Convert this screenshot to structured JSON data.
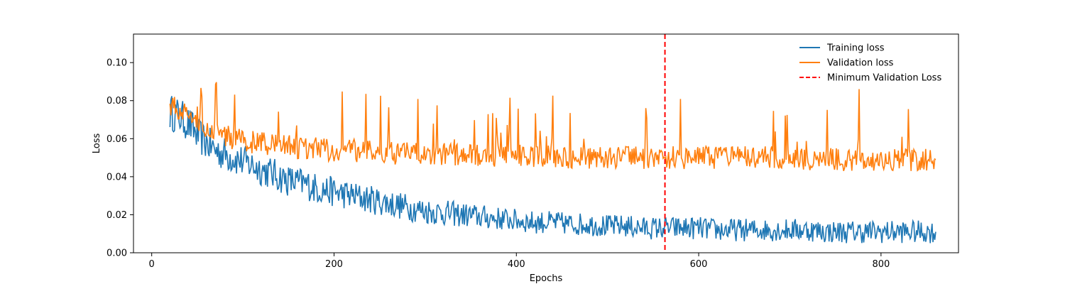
{
  "chart_data": {
    "type": "line",
    "title": "",
    "xlabel": "Epochs",
    "ylabel": "Loss",
    "xlim": [
      -20,
      885
    ],
    "ylim": [
      0.0,
      0.115
    ],
    "xticks": [
      0,
      200,
      400,
      600,
      800
    ],
    "xtick_labels": [
      "0",
      "200",
      "400",
      "600",
      "800"
    ],
    "yticks": [
      0.0,
      0.02,
      0.04,
      0.06,
      0.08,
      0.1
    ],
    "ytick_labels": [
      "0.00",
      "0.02",
      "0.04",
      "0.06",
      "0.08",
      "0.10"
    ],
    "grid": false,
    "legend_position": "top-right",
    "series": [
      {
        "name": "Training loss",
        "color": "#1f77b4",
        "x": [
          20,
          30,
          40,
          50,
          60,
          70,
          80,
          90,
          100,
          110,
          120,
          130,
          140,
          150,
          160,
          170,
          180,
          190,
          200,
          210,
          220,
          230,
          240,
          250,
          260,
          270,
          280,
          290,
          300,
          320,
          340,
          360,
          380,
          400,
          420,
          440,
          460,
          480,
          500,
          520,
          540,
          560,
          580,
          600,
          620,
          640,
          660,
          680,
          700,
          720,
          740,
          760,
          780,
          800,
          820,
          840,
          860
        ],
        "y": [
          0.074,
          0.072,
          0.068,
          0.062,
          0.058,
          0.054,
          0.052,
          0.05,
          0.048,
          0.046,
          0.044,
          0.042,
          0.04,
          0.038,
          0.037,
          0.036,
          0.034,
          0.033,
          0.032,
          0.031,
          0.03,
          0.029,
          0.028,
          0.027,
          0.026,
          0.025,
          0.024,
          0.023,
          0.022,
          0.021,
          0.02,
          0.019,
          0.018,
          0.017,
          0.016,
          0.016,
          0.015,
          0.015,
          0.014,
          0.014,
          0.013,
          0.013,
          0.013,
          0.013,
          0.012,
          0.012,
          0.012,
          0.012,
          0.012,
          0.012,
          0.011,
          0.011,
          0.011,
          0.011,
          0.011,
          0.011,
          0.011
        ]
      },
      {
        "name": "Validation loss",
        "color": "#ff7f0e",
        "x": [
          20,
          30,
          40,
          50,
          60,
          70,
          80,
          90,
          100,
          110,
          120,
          130,
          140,
          150,
          160,
          170,
          180,
          190,
          200,
          210,
          220,
          230,
          240,
          250,
          260,
          270,
          280,
          290,
          300,
          320,
          340,
          360,
          380,
          400,
          420,
          440,
          460,
          480,
          500,
          520,
          540,
          560,
          580,
          600,
          620,
          640,
          660,
          680,
          700,
          720,
          740,
          760,
          780,
          800,
          820,
          840,
          860
        ],
        "y": [
          0.078,
          0.075,
          0.072,
          0.07,
          0.066,
          0.064,
          0.062,
          0.06,
          0.059,
          0.058,
          0.058,
          0.057,
          0.056,
          0.056,
          0.055,
          0.055,
          0.055,
          0.054,
          0.054,
          0.054,
          0.054,
          0.053,
          0.053,
          0.053,
          0.053,
          0.052,
          0.052,
          0.052,
          0.052,
          0.052,
          0.051,
          0.051,
          0.051,
          0.051,
          0.051,
          0.051,
          0.05,
          0.05,
          0.05,
          0.05,
          0.05,
          0.05,
          0.05,
          0.05,
          0.05,
          0.05,
          0.05,
          0.05,
          0.05,
          0.049,
          0.049,
          0.049,
          0.049,
          0.049,
          0.049,
          0.049,
          0.049
        ]
      },
      {
        "name": "Minimum Validation Loss",
        "color": "#ff0000",
        "style": "dashed",
        "type": "vline",
        "x": [
          563
        ]
      }
    ]
  }
}
